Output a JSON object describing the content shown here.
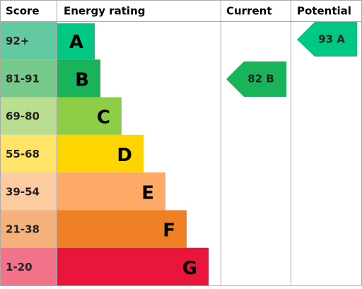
{
  "header": {
    "score": "Score",
    "rating": "Energy rating",
    "current": "Current",
    "potential": "Potential"
  },
  "rows": [
    {
      "score": "92+",
      "band": "A"
    },
    {
      "score": "81-91",
      "band": "B"
    },
    {
      "score": "69-80",
      "band": "C"
    },
    {
      "score": "55-68",
      "band": "D"
    },
    {
      "score": "39-54",
      "band": "E"
    },
    {
      "score": "21-38",
      "band": "F"
    },
    {
      "score": "1-20",
      "band": "G"
    }
  ],
  "current": "82 B",
  "potential": "93 A"
}
